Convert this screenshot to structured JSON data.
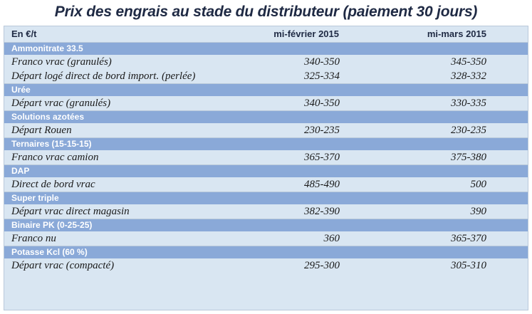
{
  "title": "Prix des engrais au stade du distributeur (paiement 30 jours)",
  "header": {
    "unit": "En €/t",
    "col1": "mi-février 2015",
    "col2": "mi-mars 2015"
  },
  "sections": [
    {
      "name": "Ammonitrate 33.5",
      "rows": [
        {
          "label": "Franco vrac (granulés)",
          "feb": "340-350",
          "mar": "345-350"
        },
        {
          "label": "Départ logé direct de bord import. (perlée)",
          "feb": "325-334",
          "mar": "328-332"
        }
      ]
    },
    {
      "name": "Urée",
      "rows": [
        {
          "label": "Départ vrac (granulés)",
          "feb": "340-350",
          "mar": "330-335"
        }
      ]
    },
    {
      "name": "Solutions azotées",
      "rows": [
        {
          "label": "Départ Rouen",
          "feb": "230-235",
          "mar": "230-235"
        }
      ]
    },
    {
      "name": "Ternaires (15-15-15)",
      "rows": [
        {
          "label": "Franco vrac camion",
          "feb": "365-370",
          "mar": "375-380"
        }
      ]
    },
    {
      "name": "DAP",
      "rows": [
        {
          "label": "Direct de bord vrac",
          "feb": "485-490",
          "mar": "500"
        }
      ]
    },
    {
      "name": "Super triple",
      "rows": [
        {
          "label": "Départ vrac direct magasin",
          "feb": "382-390",
          "mar": "390"
        }
      ]
    },
    {
      "name": "Binaire PK (0-25-25)",
      "rows": [
        {
          "label": "Franco nu",
          "feb": "360",
          "mar": "365-370"
        }
      ]
    },
    {
      "name": "Potasse Kcl (60 %)",
      "rows": [
        {
          "label": "Départ vrac (compacté)",
          "feb": "295-300",
          "mar": "305-310"
        }
      ]
    }
  ]
}
